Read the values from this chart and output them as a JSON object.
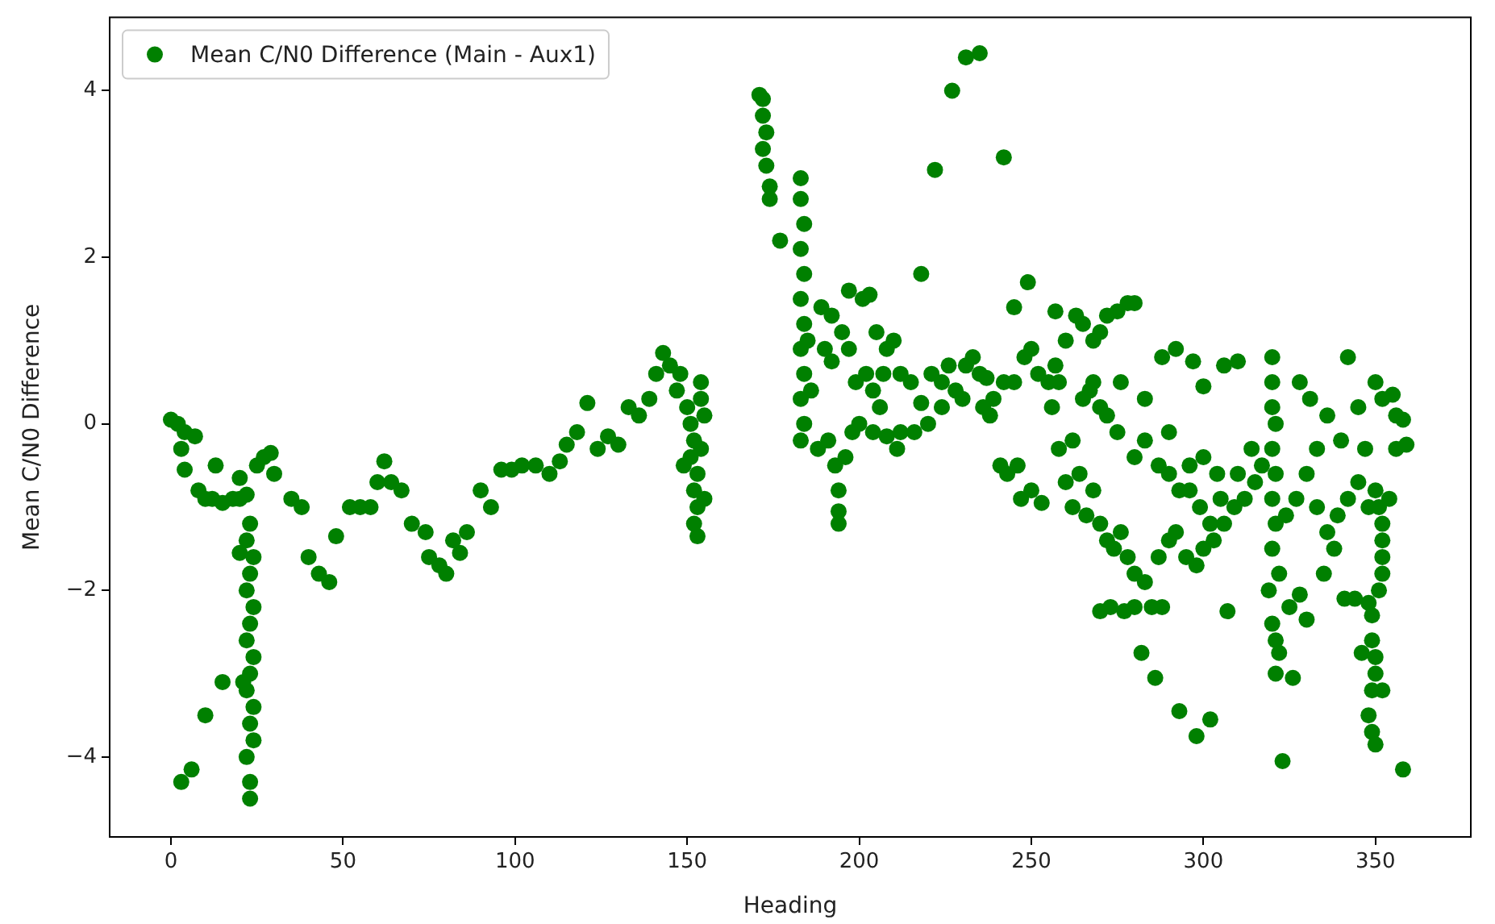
{
  "chart_data": {
    "type": "scatter",
    "xlabel": "Heading",
    "ylabel": "Mean C/N0 Difference",
    "legend": "top left",
    "marker": "circle",
    "grid": false,
    "xlim": [
      -17.8,
      377.7
    ],
    "ylim": [
      -4.96,
      4.88
    ],
    "xticks": [
      0,
      50,
      100,
      150,
      200,
      250,
      300,
      350
    ],
    "yticks": [
      {
        "value": -4,
        "label": "−4"
      },
      {
        "value": -2,
        "label": "−2"
      },
      0,
      2,
      4
    ],
    "series": [
      {
        "name": "Mean C/N0 Difference (Main - Aux1)",
        "color": "#008000",
        "x": [
          0,
          2,
          4,
          7,
          3,
          4,
          8,
          10,
          13,
          12,
          15,
          18,
          20,
          20,
          22,
          25,
          27,
          29,
          30,
          35,
          38,
          40,
          43,
          46,
          48,
          52,
          55,
          58,
          60,
          62,
          64,
          67,
          70,
          74,
          75,
          78,
          80,
          82,
          84,
          86,
          90,
          93,
          96,
          99,
          102,
          106,
          110,
          113,
          115,
          118,
          121,
          124,
          127,
          130,
          133,
          136,
          139,
          141,
          143,
          145,
          148,
          147,
          23,
          22,
          24,
          23,
          22,
          24,
          23,
          22,
          24,
          23,
          22,
          24,
          23,
          24,
          22,
          23,
          23,
          20,
          21,
          15,
          10,
          3,
          6,
          150,
          151,
          152,
          151,
          153,
          152,
          153,
          152,
          153,
          154,
          154,
          155,
          154,
          149,
          155,
          171,
          172,
          172,
          173,
          172,
          173,
          174,
          174,
          177,
          183,
          183,
          184,
          183,
          184,
          183,
          184,
          183,
          184,
          183,
          184,
          183,
          185,
          186,
          188,
          191,
          193,
          194,
          194,
          194,
          196,
          198,
          189,
          192,
          195,
          197,
          190,
          192,
          197,
          201,
          203,
          205,
          208,
          210,
          204,
          207,
          212,
          215,
          218,
          221,
          224,
          226,
          228,
          231,
          233,
          235,
          237,
          239,
          199,
          202,
          200,
          204,
          208,
          212,
          216,
          220,
          224,
          230,
          236,
          238,
          242,
          245,
          248,
          250,
          252,
          255,
          257,
          260,
          263,
          265,
          268,
          270,
          272,
          275,
          278,
          280,
          211,
          206,
          218,
          222,
          227,
          231,
          235,
          242,
          249,
          245,
          257,
          241,
          243,
          246,
          247,
          250,
          253,
          256,
          258,
          260,
          262,
          264,
          266,
          267,
          268,
          270,
          272,
          274,
          276,
          278,
          280,
          283,
          285,
          287,
          290,
          292,
          295,
          298,
          300,
          303,
          306,
          309,
          312,
          315,
          270,
          273,
          277,
          280,
          282,
          288,
          286,
          293,
          298,
          302,
          307,
          272,
          268,
          275,
          280,
          283,
          287,
          290,
          293,
          296,
          300,
          304,
          288,
          292,
          297,
          300,
          306,
          310,
          296,
          299,
          302,
          276,
          270,
          265,
          262,
          258,
          283,
          290,
          305,
          310,
          314,
          317,
          320,
          320,
          321,
          320,
          321,
          320,
          321,
          320,
          320,
          322,
          319,
          320,
          321,
          322,
          321,
          323,
          326,
          325,
          328,
          330,
          324,
          327,
          330,
          333,
          336,
          340,
          342,
          345,
          347,
          350,
          352,
          355,
          356,
          358,
          359,
          333,
          336,
          339,
          342,
          345,
          348,
          328,
          331,
          335,
          338,
          341,
          344,
          346,
          348,
          350,
          351,
          352,
          352,
          352,
          352,
          351,
          349,
          349,
          350,
          350,
          349,
          348,
          349,
          350,
          352,
          358,
          356,
          354
        ],
        "values": [
          0.05,
          0,
          -0.1,
          -0.15,
          -0.3,
          -0.55,
          -0.8,
          -0.9,
          -0.5,
          -0.9,
          -0.95,
          -0.9,
          -0.9,
          -0.65,
          -0.85,
          -0.5,
          -0.4,
          -0.35,
          -0.6,
          -0.9,
          -1.0,
          -1.6,
          -1.8,
          -1.9,
          -1.35,
          -1.0,
          -1.0,
          -1.0,
          -0.7,
          -0.45,
          -0.7,
          -0.8,
          -1.2,
          -1.3,
          -1.6,
          -1.7,
          -1.8,
          -1.4,
          -1.55,
          -1.3,
          -0.8,
          -1.0,
          -0.55,
          -0.55,
          -0.5,
          -0.5,
          -0.6,
          -0.45,
          -0.25,
          -0.1,
          0.25,
          -0.3,
          -0.15,
          -0.25,
          0.2,
          0.1,
          0.3,
          0.6,
          0.85,
          0.7,
          0.6,
          0.4,
          -1.2,
          -1.4,
          -1.6,
          -1.8,
          -2.0,
          -2.2,
          -2.4,
          -2.6,
          -2.8,
          -3.0,
          -3.2,
          -3.4,
          -3.6,
          -3.8,
          -4.0,
          -4.3,
          -4.5,
          -1.55,
          -3.1,
          -3.1,
          -3.5,
          -4.3,
          -4.15,
          0.2,
          0,
          -0.2,
          -0.4,
          -0.6,
          -0.8,
          -1.0,
          -1.2,
          -1.35,
          0.5,
          0.3,
          0.1,
          -0.3,
          -0.5,
          -0.9,
          3.95,
          3.9,
          3.7,
          3.5,
          3.3,
          3.1,
          2.85,
          2.7,
          2.2,
          2.95,
          2.7,
          2.4,
          2.1,
          1.8,
          1.5,
          1.2,
          0.9,
          0.6,
          0.3,
          0,
          -0.2,
          1.0,
          0.4,
          -0.3,
          -0.2,
          -0.5,
          -0.8,
          -1.05,
          -1.2,
          -0.4,
          -0.1,
          1.4,
          1.3,
          1.1,
          0.9,
          0.9,
          0.75,
          1.6,
          1.5,
          1.55,
          1.1,
          0.9,
          1.0,
          0.4,
          0.6,
          0.6,
          0.5,
          0.25,
          0.6,
          0.5,
          0.7,
          0.4,
          0.7,
          0.8,
          0.6,
          0.55,
          0.3,
          0.5,
          0.6,
          0.0,
          -0.1,
          -0.15,
          -0.1,
          -0.1,
          0,
          0.2,
          0.3,
          0.2,
          0.1,
          0.5,
          0.5,
          0.8,
          0.9,
          0.6,
          0.5,
          0.7,
          1.0,
          1.3,
          1.2,
          1.0,
          1.1,
          1.3,
          1.35,
          1.45,
          1.45,
          -0.3,
          0.2,
          1.8,
          3.05,
          4.0,
          4.4,
          4.45,
          3.2,
          1.7,
          1.4,
          1.35,
          -0.5,
          -0.6,
          -0.5,
          -0.9,
          -0.8,
          -0.95,
          0.2,
          -0.3,
          -0.7,
          -1.0,
          -0.6,
          -1.1,
          0.4,
          -0.8,
          -1.2,
          -1.4,
          -1.5,
          -1.3,
          -1.6,
          -1.8,
          -1.9,
          -2.2,
          -1.6,
          -1.4,
          -1.3,
          -1.6,
          -1.7,
          -1.5,
          -1.4,
          -1.2,
          -1.0,
          -0.9,
          -0.7,
          -2.25,
          -2.2,
          -2.25,
          -2.2,
          -2.75,
          -2.2,
          -3.05,
          -3.45,
          -3.75,
          -3.55,
          -2.25,
          0.1,
          0.5,
          -0.1,
          -0.4,
          -0.2,
          -0.5,
          -0.6,
          -0.8,
          -0.5,
          -0.4,
          -0.6,
          0.8,
          0.9,
          0.75,
          0.45,
          0.7,
          0.75,
          -0.8,
          -1.0,
          -1.2,
          0.5,
          0.2,
          0.3,
          -0.2,
          0.5,
          0.3,
          -0.1,
          -0.9,
          -0.6,
          -0.3,
          -0.5,
          0.5,
          0.2,
          0,
          -0.3,
          -0.6,
          -0.9,
          -1.2,
          -1.5,
          0.8,
          -1.8,
          -2.0,
          -2.4,
          -2.6,
          -2.75,
          -3.0,
          -4.05,
          -3.05,
          -2.2,
          -2.05,
          -2.35,
          -1.1,
          -0.9,
          -0.6,
          -0.3,
          0.1,
          -0.2,
          0.8,
          0.2,
          -0.3,
          0.5,
          0.3,
          0.35,
          0.1,
          0.05,
          -0.25,
          -1.0,
          -1.3,
          -1.1,
          -0.9,
          -0.7,
          -1.0,
          0.5,
          0.3,
          -1.8,
          -1.5,
          -2.1,
          -2.1,
          -2.75,
          -2.15,
          -0.8,
          -1.0,
          -1.2,
          -1.4,
          -1.6,
          -1.8,
          -2.0,
          -2.3,
          -2.6,
          -2.8,
          -3.0,
          -3.2,
          -3.5,
          -3.7,
          -3.85,
          -3.2,
          -4.15,
          -0.3,
          -0.9
        ]
      }
    ]
  }
}
